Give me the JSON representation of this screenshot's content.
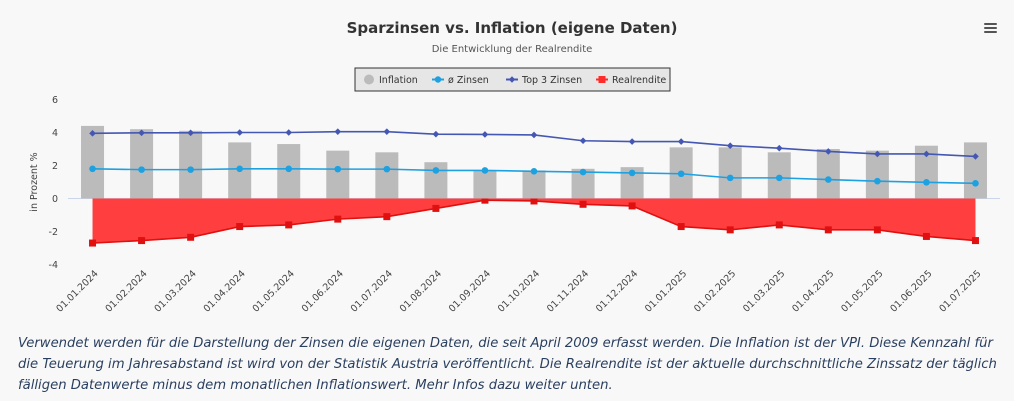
{
  "chart_data": {
    "type": "bar+line+area",
    "title": "Sparzinsen vs. Inflation (eigene Daten)",
    "subtitle": "Die Entwicklung der Realrendite",
    "ylabel": "in Prozent %",
    "ylim": [
      -4,
      6
    ],
    "yticks": [
      -4,
      -2,
      0,
      2,
      4,
      6
    ],
    "categories": [
      "01.01.2024",
      "01.02.2024",
      "01.03.2024",
      "01.04.2024",
      "01.05.2024",
      "01.06.2024",
      "01.07.2024",
      "01.08.2024",
      "01.09.2024",
      "01.10.2024",
      "01.11.2024",
      "01.12.2024",
      "01.01.2025",
      "01.02.2025",
      "01.03.2025",
      "01.04.2025",
      "01.05.2025",
      "01.06.2025",
      "01.07.2025"
    ],
    "legend_position": "top-center",
    "series": [
      {
        "name": "Inflation",
        "type": "bar",
        "color": "#bbbbbb",
        "values": [
          4.4,
          4.2,
          4.1,
          3.4,
          3.3,
          2.9,
          2.8,
          2.2,
          1.7,
          1.7,
          1.8,
          1.9,
          3.1,
          3.1,
          2.8,
          3.0,
          2.9,
          3.2,
          3.4
        ]
      },
      {
        "name": "ø Zinsen",
        "type": "line",
        "color": "#1ea1e0",
        "values": [
          1.8,
          1.75,
          1.75,
          1.8,
          1.8,
          1.78,
          1.78,
          1.7,
          1.7,
          1.65,
          1.6,
          1.55,
          1.5,
          1.25,
          1.25,
          1.15,
          1.05,
          0.98,
          0.92
        ]
      },
      {
        "name": "Top 3 Zinsen",
        "type": "line",
        "color": "#4457b2",
        "values": [
          3.95,
          3.98,
          3.98,
          4.0,
          4.0,
          4.05,
          4.05,
          3.9,
          3.88,
          3.85,
          3.5,
          3.45,
          3.45,
          3.2,
          3.05,
          2.85,
          2.7,
          2.7,
          2.55
        ]
      },
      {
        "name": "Realrendite",
        "type": "area",
        "color": "#ff2a2a",
        "values": [
          -2.7,
          -2.55,
          -2.35,
          -1.7,
          -1.6,
          -1.25,
          -1.1,
          -0.6,
          -0.1,
          -0.15,
          -0.35,
          -0.45,
          -1.7,
          -1.9,
          -1.6,
          -1.9,
          -1.9,
          -2.3,
          -2.55
        ]
      }
    ]
  },
  "caption": "Verwendet werden für die Darstellung der Zinsen die eigenen Daten, die seit April 2009 erfasst werden. Die Inflation ist der VPI. Diese Kennzahl für die Teuerung im Jahresabstand ist wird von der Statistik Austria veröffentlicht. Die Realrendite ist der aktuelle durchschnittliche Zinssatz der täglich fälligen Datenwerte minus dem monatlichen Inflationswert. Mehr Infos dazu weiter unten.",
  "menu_icon": "hamburger-menu-icon"
}
